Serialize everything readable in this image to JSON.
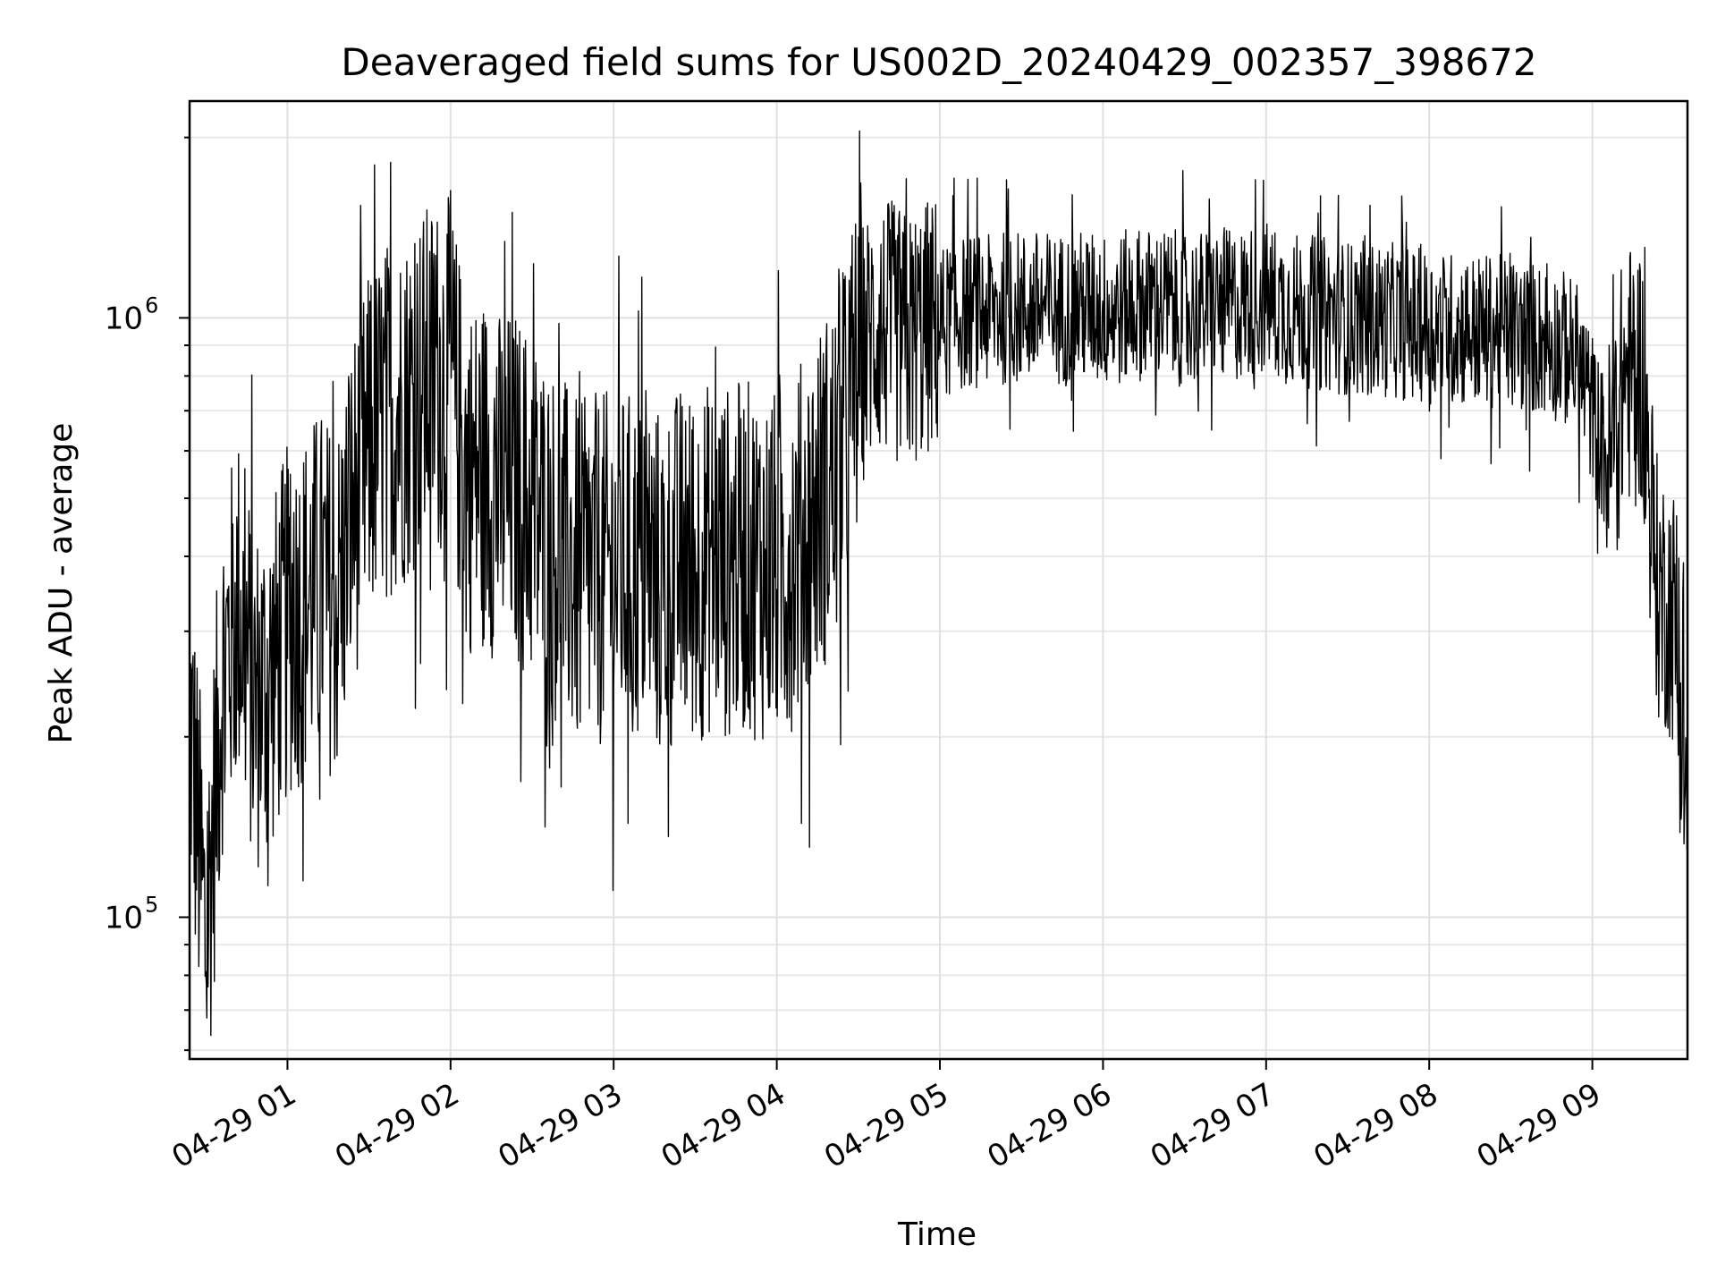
{
  "chart_data": {
    "type": "line",
    "title": "Deaveraged field sums for US002D_20240429_002357_398672",
    "xlabel": "Time",
    "ylabel": "Peak ADU - average",
    "x_scale": "time",
    "y_scale": "log",
    "xlim": [
      "2024-04-29 00:24:00",
      "2024-04-29 09:35:00"
    ],
    "ylim": [
      58000,
      2300000
    ],
    "x_ticks": [
      "04-29 01",
      "04-29 02",
      "04-29 03",
      "04-29 04",
      "04-29 05",
      "04-29 06",
      "04-29 07",
      "04-29 08",
      "04-29 09"
    ],
    "y_ticks": [
      {
        "base": "10",
        "exp": "5",
        "value": 100000
      },
      {
        "base": "10",
        "exp": "6",
        "value": 1000000
      }
    ],
    "grid": true,
    "series_color": "#000000",
    "series": [
      {
        "x": [
          "00:24",
          "00:30",
          "00:36",
          "00:42",
          "00:48",
          "00:54",
          "01:00",
          "01:06",
          "01:12",
          "01:18",
          "01:24",
          "01:30",
          "01:36",
          "01:42",
          "01:48",
          "01:54",
          "02:00",
          "02:06",
          "02:12",
          "02:18",
          "02:24",
          "02:30",
          "02:36",
          "02:42",
          "02:48",
          "02:54",
          "03:00",
          "03:06",
          "03:12",
          "03:18",
          "03:24",
          "03:30",
          "03:36",
          "03:42",
          "03:48",
          "03:54",
          "04:00",
          "04:06",
          "04:12",
          "04:18",
          "04:24",
          "04:30",
          "04:36",
          "04:42",
          "04:48",
          "04:54",
          "05:00",
          "05:06",
          "05:12",
          "05:18",
          "05:24",
          "05:30",
          "05:36",
          "05:42",
          "05:48",
          "05:54",
          "06:00",
          "06:06",
          "06:12",
          "06:18",
          "06:24",
          "06:30",
          "06:36",
          "06:42",
          "06:48",
          "06:54",
          "07:00",
          "07:06",
          "07:12",
          "07:18",
          "07:24",
          "07:30",
          "07:36",
          "07:42",
          "07:48",
          "07:54",
          "08:00",
          "08:06",
          "08:12",
          "08:18",
          "08:24",
          "08:30",
          "08:36",
          "08:42",
          "08:48",
          "08:54",
          "09:00",
          "09:06",
          "09:12",
          "09:18",
          "09:24",
          "09:30",
          "09:35"
        ],
        "y": [
          220000,
          90000,
          250000,
          330000,
          230000,
          250000,
          310000,
          330000,
          360000,
          330000,
          480000,
          600000,
          680000,
          700000,
          760000,
          800000,
          800000,
          540000,
          560000,
          520000,
          520000,
          480000,
          430000,
          400000,
          360000,
          380000,
          380000,
          380000,
          390000,
          350000,
          390000,
          380000,
          400000,
          390000,
          400000,
          390000,
          380000,
          410000,
          450000,
          520000,
          580000,
          850000,
          960000,
          950000,
          910000,
          950000,
          980000,
          1010000,
          1030000,
          1020000,
          1040000,
          1040000,
          1040000,
          1030000,
          1040000,
          1040000,
          1030000,
          1030000,
          1060000,
          1050000,
          1050000,
          1030000,
          1040000,
          1050000,
          1050000,
          1060000,
          1080000,
          1040000,
          1030000,
          1020000,
          1010000,
          1000000,
          1000000,
          990000,
          990000,
          970000,
          970000,
          960000,
          960000,
          950000,
          950000,
          940000,
          930000,
          920000,
          900000,
          860000,
          700000,
          560000,
          800000,
          820000,
          350000,
          320000,
          150000
        ]
      }
    ]
  }
}
